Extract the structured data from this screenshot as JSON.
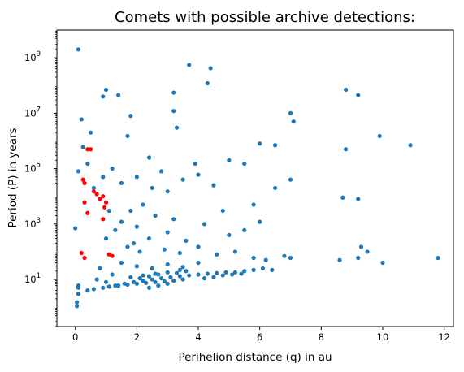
{
  "chart_data": {
    "type": "scatter",
    "title": "Comets with possible archive detections:",
    "xlabel": "Perihelion distance (q) in au",
    "ylabel": "Period (P) in years",
    "xlim": [
      -0.6,
      12.3
    ],
    "ylim": [
      0.2,
      10000000000
    ],
    "yscale": "log",
    "grid": false,
    "xticks": [
      0,
      2,
      4,
      6,
      8,
      10,
      12
    ],
    "xtick_labels": [
      "0",
      "2",
      "4",
      "6",
      "8",
      "10",
      "12"
    ],
    "yticks": [
      10,
      1000,
      100000,
      10000000,
      1000000000
    ],
    "ytick_labels": [
      "10",
      "10",
      "10",
      "10",
      "10"
    ],
    "ytick_exponents": [
      "1",
      "3",
      "5",
      "7",
      "9"
    ],
    "series": [
      {
        "color": "#1f77b4",
        "points": [
          [
            0.1,
            2000000000
          ],
          [
            3.7,
            550000000
          ],
          [
            4.4,
            420000000
          ],
          [
            4.3,
            120000000
          ],
          [
            1.0,
            70000000
          ],
          [
            1.4,
            45000000
          ],
          [
            0.9,
            40000000
          ],
          [
            3.2,
            55000000
          ],
          [
            8.8,
            70000000
          ],
          [
            9.2,
            45000000
          ],
          [
            0.2,
            6000000
          ],
          [
            1.8,
            8000000
          ],
          [
            3.2,
            12000000
          ],
          [
            7.0,
            10000000
          ],
          [
            7.1,
            5000000
          ],
          [
            3.3,
            3000000
          ],
          [
            0.5,
            2000000
          ],
          [
            1.7,
            1500000
          ],
          [
            9.9,
            1500000
          ],
          [
            10.9,
            700000
          ],
          [
            8.8,
            500000
          ],
          [
            0.25,
            600000
          ],
          [
            6.0,
            800000
          ],
          [
            6.5,
            700000
          ],
          [
            0.1,
            80000
          ],
          [
            0.4,
            150000
          ],
          [
            5.0,
            200000
          ],
          [
            5.5,
            150000
          ],
          [
            9.2,
            8000
          ],
          [
            8.7,
            9000
          ],
          [
            0.0,
            700
          ],
          [
            9.3,
            150
          ],
          [
            9.5,
            100
          ],
          [
            9.2,
            60
          ],
          [
            10.0,
            40
          ],
          [
            11.8,
            60
          ],
          [
            8.6,
            50
          ],
          [
            7.0,
            60
          ],
          [
            0.1,
            5
          ],
          [
            0.1,
            3
          ],
          [
            0.05,
            1.5
          ],
          [
            0.05,
            1.1
          ],
          [
            0.1,
            6
          ],
          [
            2.5,
            20000
          ],
          [
            3.0,
            15000
          ],
          [
            2.0,
            50000
          ],
          [
            1.5,
            30000
          ],
          [
            2.8,
            80000
          ],
          [
            3.5,
            40000
          ],
          [
            4.0,
            60000
          ],
          [
            4.5,
            25000
          ],
          [
            2.2,
            5000
          ],
          [
            1.8,
            3000
          ],
          [
            2.6,
            2000
          ],
          [
            3.2,
            1500
          ],
          [
            4.2,
            1000
          ],
          [
            1.5,
            1200
          ],
          [
            2.0,
            800
          ],
          [
            3.0,
            500
          ],
          [
            2.4,
            300
          ],
          [
            1.9,
            200
          ],
          [
            3.6,
            250
          ],
          [
            5.0,
            400
          ],
          [
            5.5,
            600
          ],
          [
            6.0,
            1200
          ],
          [
            4.8,
            3000
          ],
          [
            5.8,
            5000
          ],
          [
            6.5,
            20000
          ],
          [
            7.0,
            40000
          ],
          [
            3.9,
            150000
          ],
          [
            2.4,
            250000
          ],
          [
            1.2,
            100000
          ],
          [
            0.9,
            50000
          ],
          [
            0.6,
            20000
          ],
          [
            0.8,
            8000
          ],
          [
            1.1,
            3000
          ],
          [
            1.3,
            600
          ],
          [
            1.0,
            300
          ],
          [
            1.7,
            150
          ],
          [
            2.1,
            100
          ],
          [
            2.9,
            120
          ],
          [
            3.4,
            90
          ],
          [
            4.0,
            150
          ],
          [
            4.6,
            80
          ],
          [
            5.2,
            100
          ],
          [
            5.8,
            60
          ],
          [
            6.2,
            50
          ],
          [
            6.8,
            70
          ],
          [
            1.5,
            40
          ],
          [
            2.0,
            30
          ],
          [
            2.5,
            25
          ],
          [
            3.0,
            35
          ],
          [
            3.5,
            28
          ],
          [
            4.0,
            40
          ],
          [
            0.8,
            25
          ],
          [
            1.2,
            15
          ],
          [
            0.7,
            10
          ],
          [
            1.0,
            8
          ],
          [
            1.3,
            6
          ],
          [
            1.6,
            7
          ],
          [
            1.9,
            8
          ],
          [
            2.2,
            9
          ],
          [
            2.5,
            10
          ],
          [
            2.8,
            11
          ],
          [
            3.1,
            12
          ],
          [
            3.4,
            13
          ],
          [
            3.7,
            14
          ],
          [
            4.0,
            15
          ],
          [
            4.3,
            16
          ],
          [
            4.6,
            17
          ],
          [
            4.9,
            18
          ],
          [
            5.2,
            18
          ],
          [
            5.5,
            20
          ],
          [
            5.8,
            22
          ],
          [
            6.1,
            25
          ],
          [
            6.4,
            22
          ],
          [
            1.1,
            5.5
          ],
          [
            1.4,
            6
          ],
          [
            1.7,
            6.5
          ],
          [
            2.0,
            7
          ],
          [
            2.3,
            7.5
          ],
          [
            2.6,
            8
          ],
          [
            2.9,
            8.5
          ],
          [
            3.2,
            9
          ],
          [
            3.5,
            10
          ],
          [
            2.4,
            5
          ],
          [
            2.7,
            6
          ],
          [
            3.0,
            7
          ],
          [
            2.1,
            11
          ],
          [
            2.4,
            13
          ],
          [
            2.7,
            15
          ],
          [
            3.3,
            17
          ],
          [
            3.6,
            20
          ],
          [
            1.8,
            12
          ],
          [
            2.2,
            14
          ],
          [
            2.6,
            16
          ],
          [
            3.0,
            18
          ],
          [
            3.4,
            22
          ],
          [
            4.5,
            12
          ],
          [
            4.8,
            14
          ],
          [
            5.1,
            15
          ],
          [
            5.4,
            16
          ],
          [
            4.2,
            11
          ],
          [
            0.4,
            4
          ],
          [
            0.6,
            4.5
          ],
          [
            0.9,
            5
          ]
        ]
      },
      {
        "color": "#ff0000",
        "points": [
          [
            0.4,
            500000
          ],
          [
            0.5,
            500000
          ],
          [
            0.25,
            40000
          ],
          [
            0.3,
            30000
          ],
          [
            0.6,
            15000
          ],
          [
            0.7,
            12000
          ],
          [
            0.8,
            8000
          ],
          [
            0.9,
            10000
          ],
          [
            1.0,
            6000
          ],
          [
            0.95,
            4000
          ],
          [
            0.3,
            6000
          ],
          [
            0.4,
            2500
          ],
          [
            0.9,
            1500
          ],
          [
            0.2,
            90
          ],
          [
            0.3,
            60
          ],
          [
            1.1,
            80
          ],
          [
            1.2,
            70
          ]
        ]
      }
    ]
  }
}
